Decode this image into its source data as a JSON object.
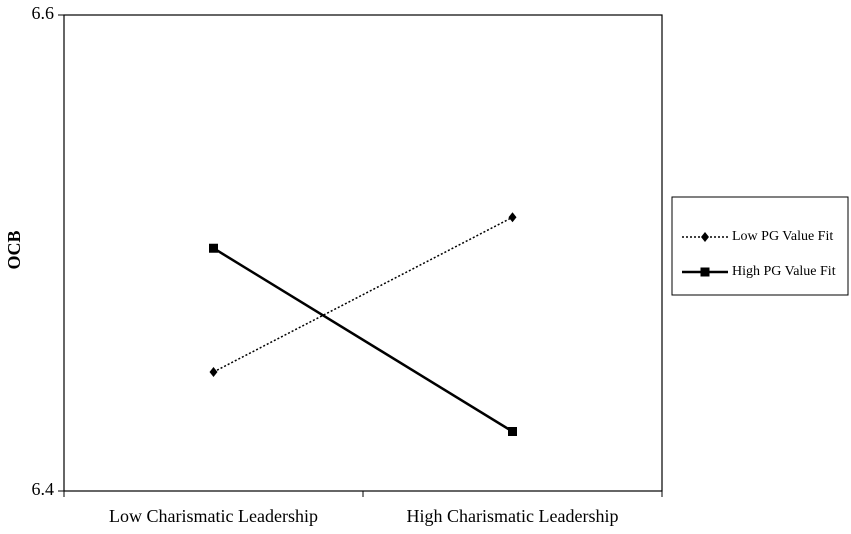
{
  "chart_data": {
    "type": "line",
    "y_label": "OCB",
    "categories": [
      "Low Charismatic Leadership",
      "High Charismatic Leadership"
    ],
    "series": [
      {
        "name": "Low PG Value Fit",
        "color": "#000000",
        "dash": "dotted",
        "marker": "diamond",
        "values": [
          6.45,
          6.515
        ]
      },
      {
        "name": "High PG Value Fit",
        "color": "#000000",
        "dash": "solid",
        "marker": "square",
        "values": [
          6.502,
          6.425
        ]
      }
    ],
    "ylim": [
      6.4,
      6.6
    ],
    "yticks": [
      6.4,
      6.6
    ],
    "grid": false,
    "legend": "right"
  }
}
